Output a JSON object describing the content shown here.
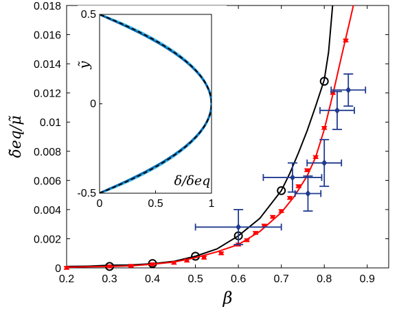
{
  "chart_data": [
    {
      "type": "scatter",
      "xlabel": "β",
      "ylabel": "δ̃eq/μ̃",
      "xlim": [
        0.2,
        0.95
      ],
      "ylim": [
        0,
        0.018
      ],
      "x_ticks": [
        "0.2",
        "0.3",
        "0.4",
        "0.5",
        "0.6",
        "0.7",
        "0.8",
        "0.9"
      ],
      "y_ticks": [
        "0",
        "0.002",
        "0.004",
        "0.006",
        "0.008",
        "0.01",
        "0.012",
        "0.014",
        "0.016",
        "0.018"
      ],
      "grid": false,
      "series": [
        {
          "kind": "curve",
          "color": "#000000",
          "x": [
            0.2,
            0.25,
            0.3,
            0.35,
            0.4,
            0.45,
            0.5,
            0.55,
            0.6,
            0.65,
            0.7,
            0.72,
            0.74,
            0.76,
            0.78,
            0.8,
            0.81,
            0.82
          ],
          "y": [
            0.0001,
            0.00012,
            0.00018,
            0.0002,
            0.00029,
            0.00045,
            0.0008,
            0.0013,
            0.0022,
            0.0034,
            0.0053,
            0.0065,
            0.0079,
            0.0094,
            0.0111,
            0.0129,
            0.0148,
            0.0182
          ]
        },
        {
          "kind": "open-circles",
          "color": "#000000",
          "x": [
            0.3,
            0.4,
            0.5,
            0.6,
            0.7,
            0.8
          ],
          "y": [
            0.0001,
            0.0003,
            0.0008,
            0.0022,
            0.0053,
            0.0128
          ]
        },
        {
          "kind": "curve",
          "color": "#ff0000",
          "x": [
            0.2,
            0.3,
            0.35,
            0.4,
            0.45,
            0.5,
            0.55,
            0.6,
            0.65,
            0.7,
            0.73,
            0.76,
            0.78,
            0.8,
            0.82,
            0.84,
            0.86,
            0.87
          ],
          "y": [
            5e-05,
            0.0001,
            0.00014,
            0.00025,
            0.0004,
            0.0007,
            0.0011,
            0.0016,
            0.0025,
            0.0038,
            0.0049,
            0.0063,
            0.0076,
            0.0095,
            0.0119,
            0.0145,
            0.017,
            0.0183
          ]
        },
        {
          "kind": "red-markers",
          "color": "#ff0000",
          "x": [
            0.2,
            0.3,
            0.35,
            0.4,
            0.45,
            0.48,
            0.52,
            0.56,
            0.6,
            0.62,
            0.64,
            0.66,
            0.68,
            0.7,
            0.72,
            0.74,
            0.76,
            0.78,
            0.8,
            0.82,
            0.85
          ],
          "y": [
            0,
            0.0001,
            0.00014,
            0.00025,
            0.00035,
            0.0005,
            0.0007,
            0.001,
            0.0016,
            0.0019,
            0.0024,
            0.0029,
            0.0035,
            0.0039,
            0.0048,
            0.0056,
            0.0067,
            0.0076,
            0.0096,
            0.012,
            0.0156
          ]
        },
        {
          "kind": "errorbar-diamonds",
          "color": "#1f3a8f",
          "points": [
            {
              "x": 0.6,
              "y": 0.0028,
              "xerr": 0.1,
              "yerr": 0.0012
            },
            {
              "x": 0.726,
              "y": 0.0062,
              "xerr": 0.068,
              "yerr": 0.001
            },
            {
              "x": 0.762,
              "y": 0.0051,
              "xerr": 0.03,
              "yerr": 0.0012
            },
            {
              "x": 0.8,
              "y": 0.0072,
              "xerr": 0.04,
              "yerr": 0.0016
            },
            {
              "x": 0.83,
              "y": 0.0108,
              "xerr": 0.04,
              "yerr": 0.0013
            },
            {
              "x": 0.856,
              "y": 0.0122,
              "xerr": 0.04,
              "yerr": 0.0011
            }
          ]
        }
      ]
    },
    {
      "type": "line",
      "xlabel": "δ/δeq",
      "ylabel": "ỹ",
      "xlim": [
        0,
        1
      ],
      "ylim": [
        -0.5,
        0.5
      ],
      "x_ticks": [
        "0",
        "0.5",
        "1"
      ],
      "y_ticks": [
        "-0.5",
        "0",
        "0.5"
      ],
      "series": [
        {
          "color": "#d62728",
          "k": 0.965
        },
        {
          "color": "#7b2d8e",
          "k": 0.975
        },
        {
          "color": "#1f3a8f",
          "k": 0.985
        },
        {
          "color": "#edb120",
          "k": 1.015
        },
        {
          "color": "#4dbeee",
          "k": 1.035
        },
        {
          "color": "#0072bd",
          "k": 0.96
        },
        {
          "color": "#000000",
          "k": 1.0,
          "dashed": true
        }
      ]
    }
  ]
}
